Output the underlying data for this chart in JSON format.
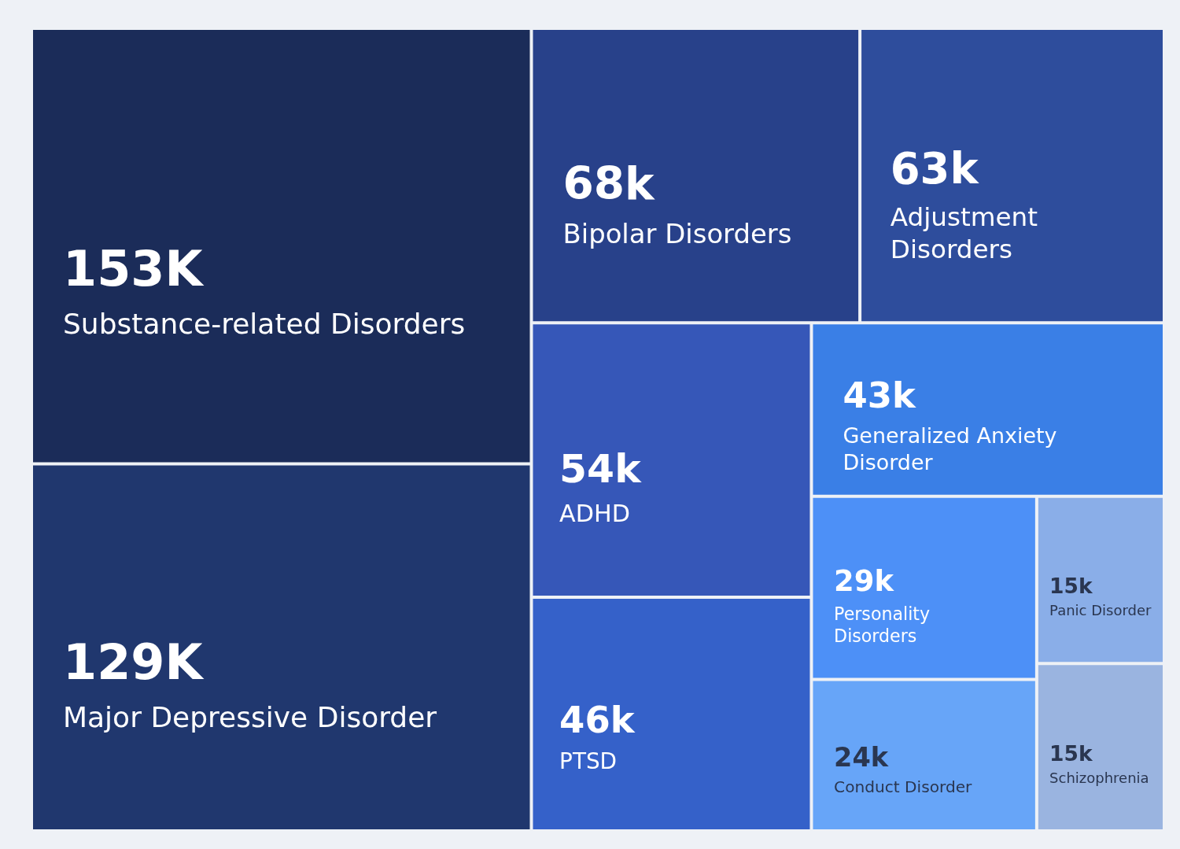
{
  "chart_data": {
    "type": "other",
    "categories": [
      "Substance-related Disorders",
      "Major Depressive Disorder",
      "Bipolar Disorders",
      "Adjustment Disorders",
      "ADHD",
      "PTSD",
      "Generalized Anxiety Disorder",
      "Personality Disorders",
      "Conduct Disorder",
      "Panic Disorder",
      "Schizophrenia"
    ],
    "values": [
      153000,
      129000,
      68000,
      63000,
      54000,
      46000,
      43000,
      29000,
      24000,
      15000,
      15000
    ],
    "value_labels": [
      "153K",
      "129K",
      "68k",
      "63k",
      "54k",
      "46k",
      "43k",
      "29k",
      "24k",
      "15k",
      "15k"
    ],
    "colors": [
      "#1b2c59",
      "#20376e",
      "#28418a",
      "#2e4d9c",
      "#3657b8",
      "#3561c9",
      "#3a7fe6",
      "#4d90f7",
      "#67a5f8",
      "#8aaee8",
      "#9ab4e0"
    ],
    "data_labels": true
  }
}
